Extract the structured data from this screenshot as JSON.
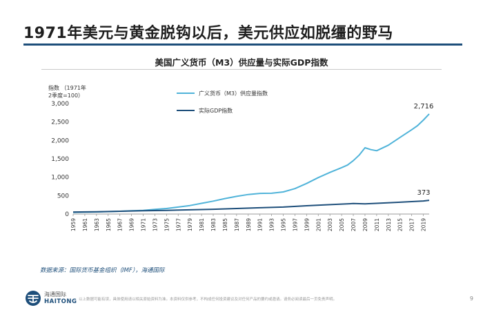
{
  "slide": {
    "title": "1971年美元与黄金脱钩以后，美元供应如脱缰的野马",
    "chart_title": "美国广义货币（M3）供应量与实际GDP指数",
    "source": "数据来源：国际货币基金组织（IMF），海通国际",
    "logo_cn": "海通国际",
    "logo_en": "HAITONG",
    "disclaimer": "以上数据可能有误，具体使用请以相关原始资料为准。本资料仅供参考，不构成任何投资建议及对任何产品的要约或邀请。请务必阅读最后一页免责声明。",
    "page_number": "9"
  },
  "colors": {
    "m3_line": "#4fb3d9",
    "gdp_line": "#1d4e7a",
    "title_rule": "#1d4e7a",
    "source_text": "#1d4e7a"
  },
  "icons": {
    "logo": "haitong-logo-icon"
  },
  "chart_data": {
    "type": "line",
    "ylabel": "指数 （1971年2季度=100）",
    "ylim": [
      0,
      3000
    ],
    "yticks": [
      0,
      500,
      1000,
      1500,
      2000,
      2500,
      3000
    ],
    "ytick_labels": [
      "0",
      "500",
      "1,000",
      "1,500",
      "2,000",
      "2,500",
      "3,000"
    ],
    "xlim": [
      1959,
      2020
    ],
    "xticks": [
      1959,
      1961,
      1963,
      1965,
      1967,
      1969,
      1971,
      1973,
      1975,
      1977,
      1979,
      1981,
      1983,
      1985,
      1987,
      1989,
      1991,
      1993,
      1995,
      1997,
      1999,
      2001,
      2003,
      2005,
      2007,
      2009,
      2011,
      2013,
      2015,
      2017,
      2019
    ],
    "grid": false,
    "legend_position": "top-left",
    "series": [
      {
        "name": "广义货币（M3）供应量指数",
        "color": "#4fb3d9",
        "x": [
          1959,
          1961,
          1963,
          1965,
          1967,
          1969,
          1971,
          1973,
          1975,
          1977,
          1979,
          1981,
          1983,
          1985,
          1987,
          1989,
          1991,
          1993,
          1995,
          1997,
          1999,
          2001,
          2003,
          2005,
          2006,
          2007,
          2008,
          2009,
          2010,
          2011,
          2013,
          2015,
          2017,
          2018,
          2019,
          2020
        ],
        "values": [
          45,
          50,
          57,
          65,
          75,
          90,
          100,
          125,
          150,
          190,
          230,
          290,
          350,
          420,
          480,
          530,
          560,
          565,
          600,
          690,
          830,
          990,
          1130,
          1260,
          1330,
          1450,
          1600,
          1800,
          1750,
          1720,
          1870,
          2080,
          2290,
          2400,
          2550,
          2716
        ],
        "end_label": "2,716"
      },
      {
        "name": "实际GDP指数",
        "color": "#1d4e7a",
        "x": [
          1959,
          1963,
          1967,
          1971,
          1975,
          1979,
          1983,
          1987,
          1991,
          1995,
          1999,
          2003,
          2007,
          2009,
          2011,
          2015,
          2019,
          2020
        ],
        "values": [
          55,
          62,
          75,
          88,
          100,
          115,
          130,
          150,
          170,
          190,
          225,
          255,
          285,
          275,
          290,
          320,
          355,
          373
        ],
        "end_label": "373"
      }
    ]
  }
}
